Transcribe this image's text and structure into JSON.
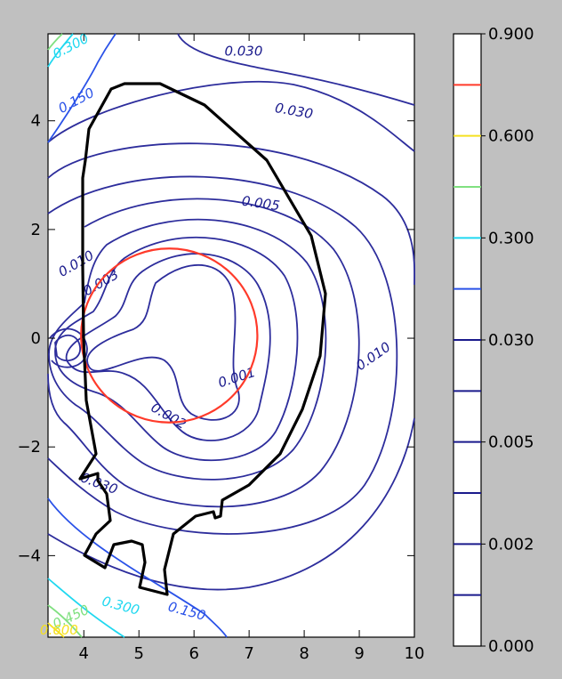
{
  "chart_data": {
    "type": "contour",
    "xlim": [
      3.35,
      10
    ],
    "ylim": [
      -5.5,
      5.6
    ],
    "x_ticks": [
      {
        "value": 4,
        "label": "4"
      },
      {
        "value": 5,
        "label": "5"
      },
      {
        "value": 6,
        "label": "6"
      },
      {
        "value": 7,
        "label": "7"
      },
      {
        "value": 8,
        "label": "8"
      },
      {
        "value": 9,
        "label": "9"
      },
      {
        "value": 10,
        "label": "10"
      }
    ],
    "y_ticks": [
      {
        "value": 4,
        "label": "4"
      },
      {
        "value": 2,
        "label": "2"
      },
      {
        "value": 0,
        "label": "0"
      },
      {
        "value": -2,
        "label": "−2"
      },
      {
        "value": -4,
        "label": "−4"
      }
    ],
    "colorbar": {
      "range": [
        0.0,
        0.9
      ],
      "levels": [
        {
          "value": 0.9,
          "color": "#ffffff"
        },
        {
          "value": 0.75,
          "color": "#ff3a2a"
        },
        {
          "value": 0.6,
          "color": "#f5e020"
        },
        {
          "value": 0.45,
          "color": "#80e080"
        },
        {
          "value": 0.3,
          "color": "#20d8f0"
        },
        {
          "value": 0.15,
          "color": "#2a52e8"
        },
        {
          "value": 0.03,
          "color": "#1a1a8c"
        },
        {
          "value": 0.01,
          "color": "#1a1a8c"
        },
        {
          "value": 0.005,
          "color": "#1a1a8c"
        },
        {
          "value": 0.003,
          "color": "#1a1a8c"
        },
        {
          "value": 0.002,
          "color": "#1a1a8c"
        },
        {
          "value": 0.001,
          "color": "#1a1a8c"
        },
        {
          "value": 0.0,
          "color": "#ffffff"
        }
      ],
      "tick_labels": [
        {
          "value": 0.9,
          "label": "0.900"
        },
        {
          "value": 0.6,
          "label": "0.600"
        },
        {
          "value": 0.3,
          "label": "0.300"
        },
        {
          "value": 0.03,
          "label": "0.030"
        },
        {
          "value": 0.005,
          "label": "0.005"
        },
        {
          "value": 0.002,
          "label": "0.002"
        },
        {
          "value": 0.0,
          "label": "0.000"
        }
      ]
    },
    "contour_labels": [
      {
        "text": "0.300",
        "x": 3.8,
        "y": 5.3,
        "color": "#20d8f0",
        "rotate": -28
      },
      {
        "text": "0.150",
        "x": 3.9,
        "y": 4.3,
        "color": "#2a52e8",
        "rotate": -28
      },
      {
        "text": "0.030",
        "x": 6.9,
        "y": 5.2,
        "color": "#1a1a8c",
        "rotate": 0
      },
      {
        "text": "0.030",
        "x": 7.8,
        "y": 4.1,
        "color": "#1a1a8c",
        "rotate": 10
      },
      {
        "text": "0.005",
        "x": 7.2,
        "y": 2.4,
        "color": "#1a1a8c",
        "rotate": 8
      },
      {
        "text": "0.010",
        "x": 3.9,
        "y": 1.3,
        "color": "#1a1a8c",
        "rotate": -30
      },
      {
        "text": "0.003",
        "x": 4.35,
        "y": 0.95,
        "color": "#1a1a8c",
        "rotate": -30
      },
      {
        "text": "0.001",
        "x": 6.8,
        "y": -0.8,
        "color": "#1a1a8c",
        "rotate": -18
      },
      {
        "text": "0.002",
        "x": 5.5,
        "y": -1.5,
        "color": "#1a1a8c",
        "rotate": 30
      },
      {
        "text": "0.010",
        "x": 9.3,
        "y": -0.4,
        "color": "#1a1a8c",
        "rotate": -35
      },
      {
        "text": "0.030",
        "x": 4.25,
        "y": -2.75,
        "color": "#1a1a8c",
        "rotate": 20
      },
      {
        "text": "0.300",
        "x": 4.65,
        "y": -5.0,
        "color": "#20d8f0",
        "rotate": 15
      },
      {
        "text": "0.150",
        "x": 5.85,
        "y": -5.1,
        "color": "#2a52e8",
        "rotate": 15
      },
      {
        "text": "0.450",
        "x": 3.8,
        "y": -5.2,
        "color": "#80e080",
        "rotate": -25
      },
      {
        "text": "0.600",
        "x": 3.55,
        "y": -5.45,
        "color": "#f5e020",
        "rotate": 0
      }
    ],
    "red_circle": {
      "center": [
        5.55,
        0.05
      ],
      "radius": 1.6,
      "color": "#ff3a2a"
    },
    "wall_color": "#000000"
  }
}
